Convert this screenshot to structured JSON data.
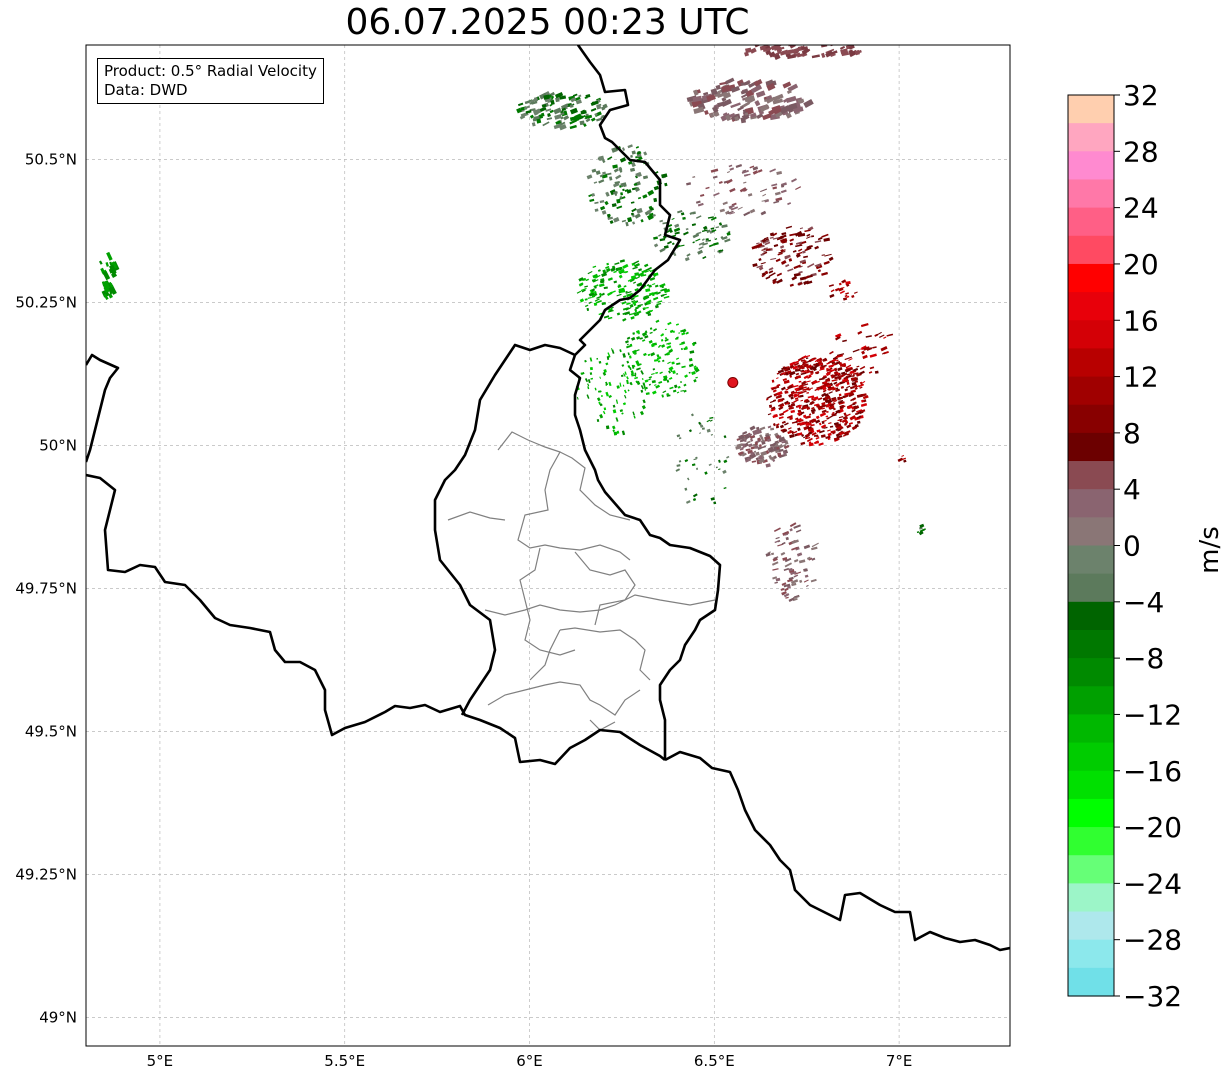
{
  "title": "06.07.2025 00:23 UTC",
  "info": {
    "product": "Product: 0.5° Radial Velocity",
    "data": "Data: DWD"
  },
  "map": {
    "lon_range": [
      4.8,
      7.3
    ],
    "lat_range": [
      48.95,
      50.7
    ],
    "x_ticks": [
      "5°E",
      "5.5°E",
      "6°E",
      "6.5°E",
      "7°E"
    ],
    "y_ticks": [
      "50.5°N",
      "50.25°N",
      "50°N",
      "49.75°N",
      "49.5°N",
      "49.25°N",
      "49°N"
    ],
    "grid": true,
    "radar_site": {
      "lon": 6.55,
      "lat": 50.11,
      "color": "#e0141e"
    }
  },
  "colorbar": {
    "unit": "m/s",
    "range": [
      -32,
      32
    ],
    "tick_labels": [
      "32",
      "28",
      "24",
      "20",
      "16",
      "12",
      "8",
      "4",
      "0",
      "−4",
      "−8",
      "−12",
      "−16",
      "−20",
      "−24",
      "−28",
      "−32"
    ],
    "colors_top_to_bottom": [
      "#ffcfaf",
      "#ffa6c0",
      "#ff8ad0",
      "#ff78a8",
      "#ff5f86",
      "#ff4a62",
      "#ff0000",
      "#e8000a",
      "#d40006",
      "#b80000",
      "#a00000",
      "#880000",
      "#6c0000",
      "#8a4a52",
      "#8a6470",
      "#8a7676",
      "#6c826c",
      "#5c7a5c",
      "#006400",
      "#007800",
      "#008a00",
      "#00a000",
      "#00b800",
      "#00cc00",
      "#00e000",
      "#00ff00",
      "#30ff30",
      "#66ff77",
      "#9cf5c8",
      "#aee8ec",
      "#8ce8ec",
      "#70e0e8"
    ]
  }
}
